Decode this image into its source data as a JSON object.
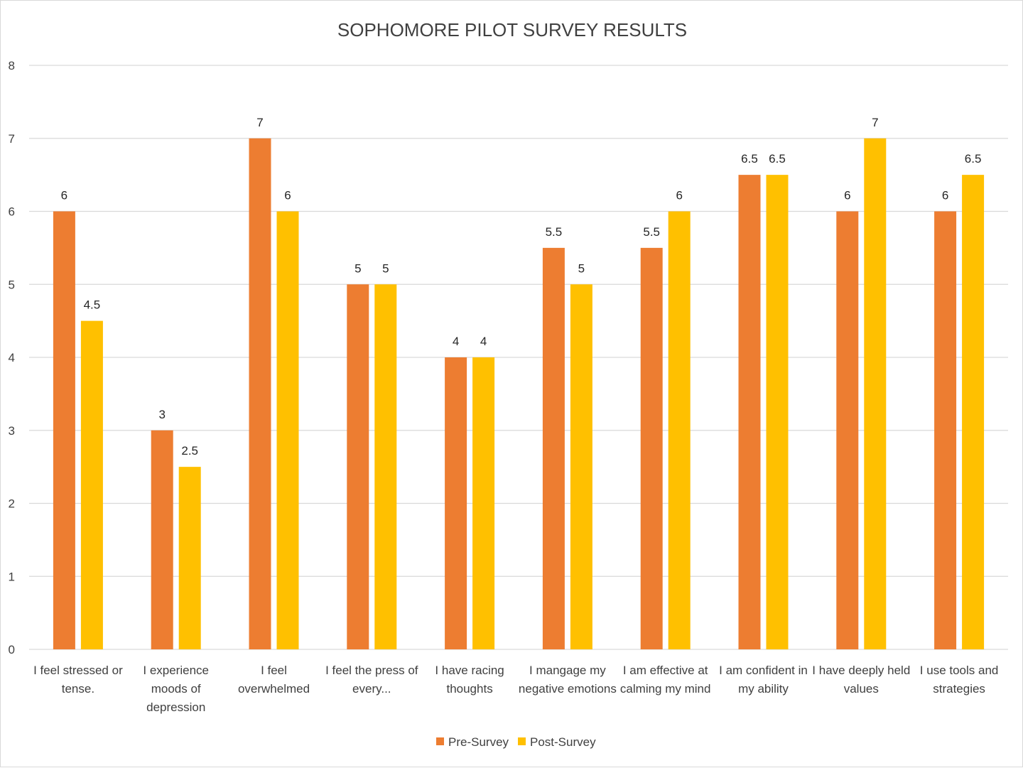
{
  "chart_data": {
    "type": "bar",
    "title": "SOPHOMORE PILOT SURVEY RESULTS",
    "categories": [
      [
        "I feel stressed or",
        "tense."
      ],
      [
        "I experience",
        "moods of",
        "depression"
      ],
      [
        "I feel",
        "overwhelmed"
      ],
      [
        "I feel the press of",
        "every..."
      ],
      [
        "I have racing",
        "thoughts"
      ],
      [
        "I mangage my",
        "negative emotions"
      ],
      [
        "I am effective at",
        "calming my mind"
      ],
      [
        "I am confident in",
        "my ability"
      ],
      [
        "I have deeply held",
        "values"
      ],
      [
        "I use tools and",
        "strategies"
      ]
    ],
    "series": [
      {
        "name": "Pre-Survey",
        "color": "#ed7d31",
        "values": [
          6,
          3,
          7,
          5,
          4,
          5.5,
          5.5,
          6.5,
          6,
          6
        ]
      },
      {
        "name": "Post-Survey",
        "color": "#ffc000",
        "values": [
          4.5,
          2.5,
          6,
          5,
          4,
          5,
          6,
          6.5,
          7,
          6.5
        ]
      }
    ],
    "ylim": [
      0,
      8
    ],
    "yticks": [
      0,
      1,
      2,
      3,
      4,
      5,
      6,
      7,
      8
    ],
    "grid": true,
    "legend_position": "bottom"
  }
}
